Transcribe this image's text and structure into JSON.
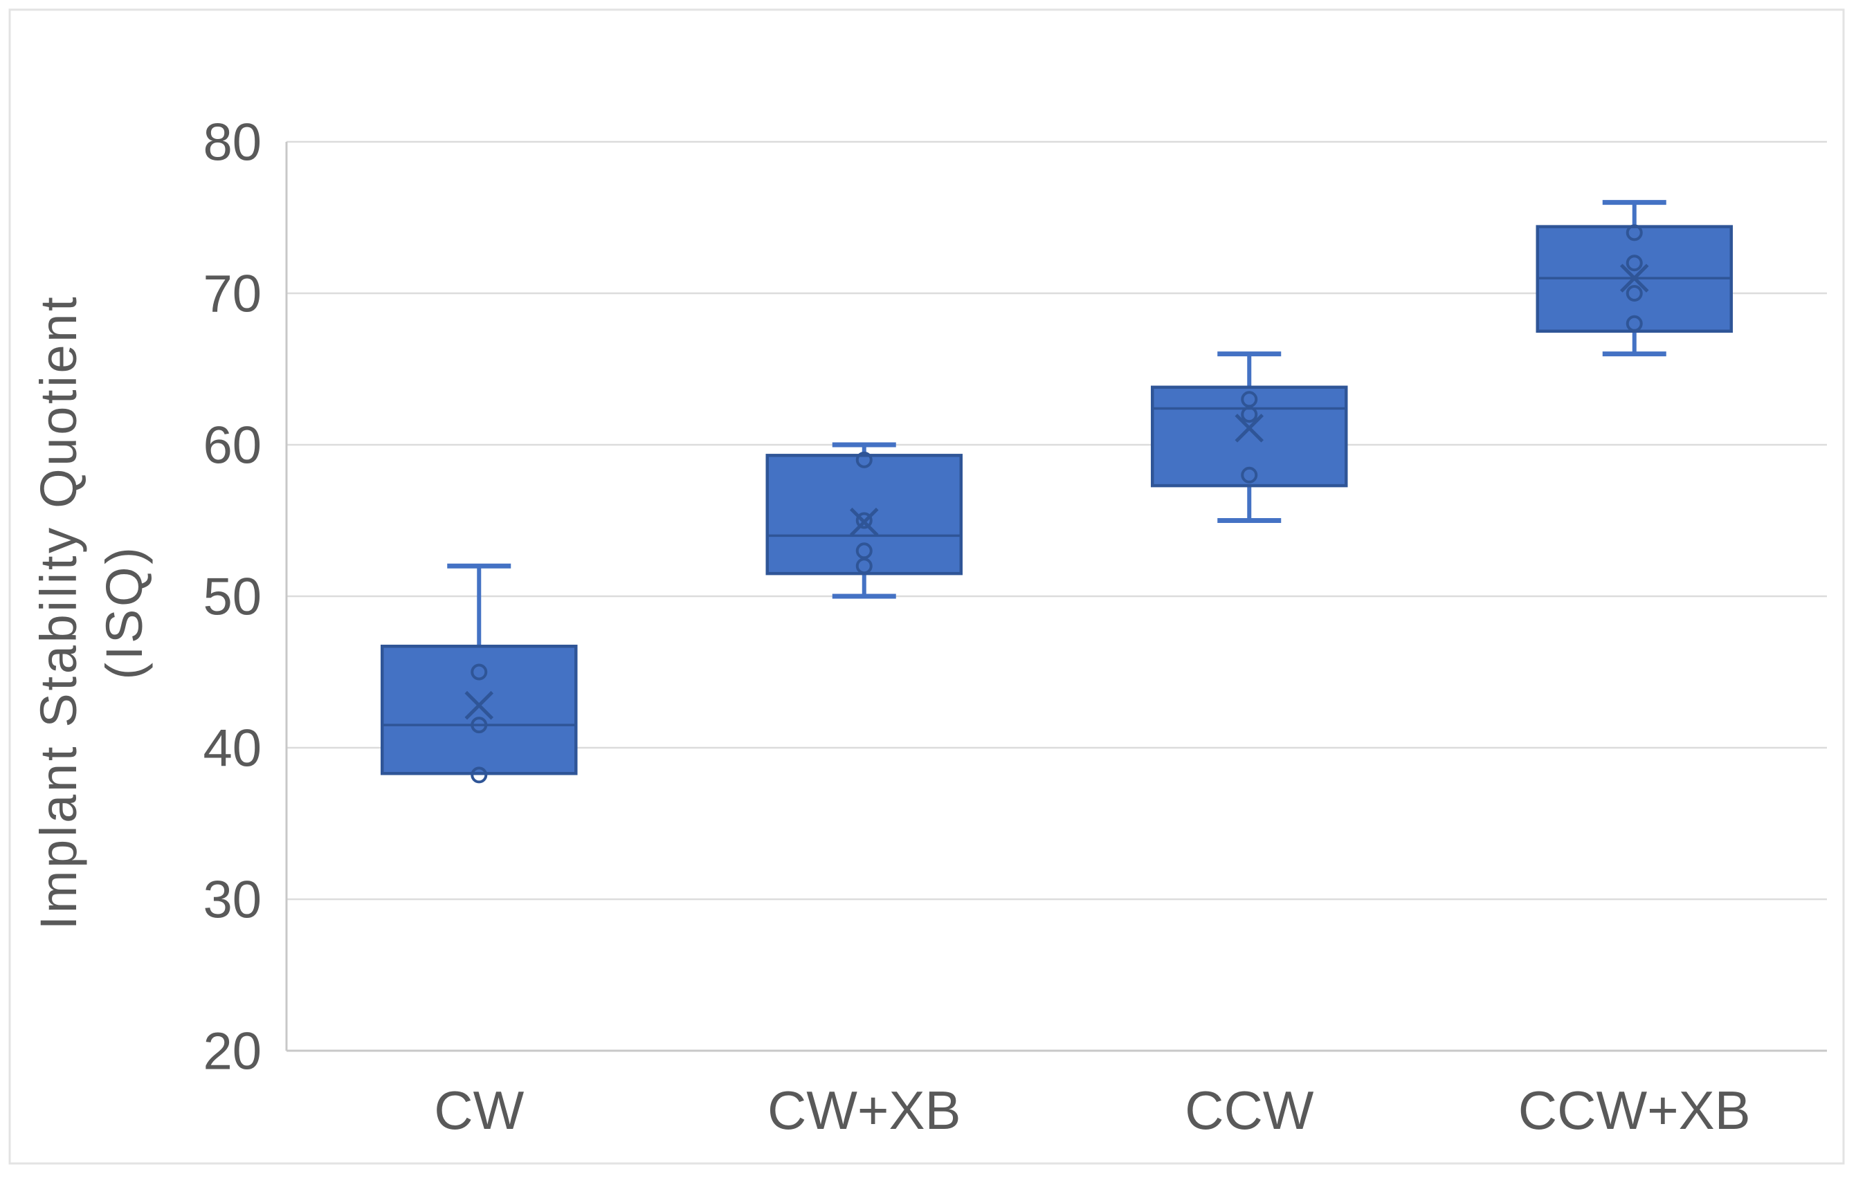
{
  "figure": {
    "background": "#FFFFFF",
    "border_color": "#E3E3E3"
  },
  "chart_data": {
    "type": "box",
    "title": "",
    "xlabel": "",
    "ylabel": "Implant Stability Quotient (ISQ)",
    "ylabel_lines": [
      "Implant Stability Quotient",
      "(ISQ)"
    ],
    "y_axis": {
      "min": 20,
      "max": 80,
      "tick_interval": 10,
      "ticks": [
        20,
        30,
        40,
        50,
        60,
        70,
        80
      ]
    },
    "categories": [
      "CW",
      "CW+XB",
      "CCW",
      "CCW+XB"
    ],
    "series": [
      {
        "category": "CW",
        "whisker_low": 38.3,
        "q1": 38.3,
        "median": 41.5,
        "q3": 46.7,
        "whisker_high": 52,
        "mean": 42.8,
        "points": [
          45,
          41.5,
          38.2
        ]
      },
      {
        "category": "CW+XB",
        "whisker_low": 50,
        "q1": 51.5,
        "median": 54,
        "q3": 59.3,
        "whisker_high": 60,
        "mean": 54.9,
        "points": [
          59,
          55,
          53,
          52
        ]
      },
      {
        "category": "CCW",
        "whisker_low": 55,
        "q1": 57.3,
        "median": 62.4,
        "q3": 63.8,
        "whisker_high": 66,
        "mean": 61.1,
        "points": [
          63,
          62,
          58
        ]
      },
      {
        "category": "CCW+XB",
        "whisker_low": 66,
        "q1": 67.5,
        "median": 71,
        "q3": 74.4,
        "whisker_high": 76,
        "mean": 71,
        "points": [
          74,
          72,
          70,
          68
        ]
      }
    ],
    "grid": true,
    "legend": false,
    "colors": {
      "box_fill": "#4472C4",
      "box_border": "#2F5597",
      "whisker": "#4472C4",
      "median": "#2F5597",
      "marker": "#2F5597",
      "gridline": "#DCDCDC",
      "axis_line": "#C8C8C8",
      "text": "#595959",
      "figure_border": "#E3E3E3",
      "background": "#FFFFFF"
    }
  }
}
